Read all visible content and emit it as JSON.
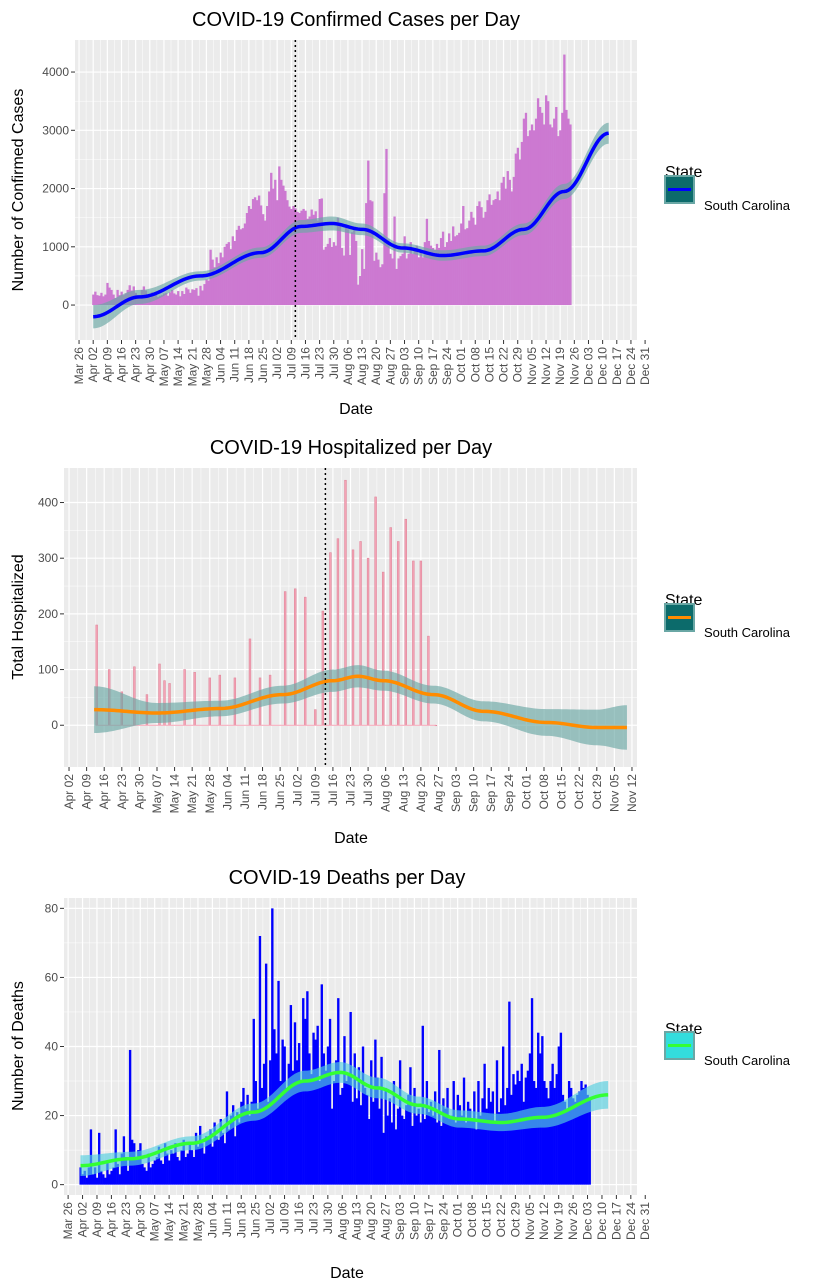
{
  "chart_data": [
    {
      "type": "bar",
      "title": "COVID-19 Confirmed Cases per Day",
      "xlabel": "Date",
      "ylabel": "Number of Confirmed Cases",
      "x_ticks": [
        "Mar 26",
        "Apr 02",
        "Apr 09",
        "Apr 16",
        "Apr 23",
        "Apr 30",
        "May 07",
        "May 14",
        "May 21",
        "May 28",
        "Jun 04",
        "Jun 11",
        "Jun 18",
        "Jun 25",
        "Jul 02",
        "Jul 09",
        "Jul 16",
        "Jul 23",
        "Jul 30",
        "Aug 06",
        "Aug 13",
        "Aug 20",
        "Aug 27",
        "Sep 03",
        "Sep 10",
        "Sep 17",
        "Sep 24",
        "Oct 01",
        "Oct 08",
        "Oct 15",
        "Oct 22",
        "Oct 29",
        "Nov 05",
        "Nov 12",
        "Nov 19",
        "Nov 26",
        "Dec 03",
        "Dec 10",
        "Dec 17",
        "Dec 24",
        "Dec 31"
      ],
      "y_ticks": [
        0,
        1000,
        2000,
        3000,
        4000
      ],
      "ylim": [
        -600,
        4550
      ],
      "xlim_days": [
        -2,
        276
      ],
      "vline_day": 107,
      "colors": {
        "bars": "#cc79d1",
        "trend": "#0000ff",
        "band": "#6aa7a5",
        "legend_fill": "#0c6b6b"
      },
      "legend": {
        "title": "State",
        "label": "South Carolina"
      },
      "series": [
        {
          "name": "South Carolina",
          "start_day": 7,
          "values": [
            180,
            230,
            170,
            160,
            210,
            150,
            180,
            380,
            300,
            260,
            180,
            120,
            260,
            170,
            230,
            170,
            200,
            260,
            340,
            250,
            320,
            210,
            170,
            130,
            260,
            320,
            250,
            180,
            130,
            220,
            150,
            200,
            140,
            160,
            170,
            200,
            210,
            160,
            220,
            260,
            200,
            180,
            240,
            150,
            240,
            190,
            300,
            270,
            210,
            270,
            260,
            290,
            160,
            330,
            250,
            360,
            440,
            420,
            950,
            780,
            650,
            820,
            720,
            900,
            820,
            1000,
            1050,
            1080,
            960,
            1180,
            1100,
            1290,
            1360,
            1300,
            1320,
            1400,
            1580,
            1700,
            1650,
            1820,
            1850,
            1800,
            1880,
            1710,
            1560,
            1450,
            1700,
            1950,
            2270,
            2000,
            2150,
            1800,
            2380,
            2150,
            2050,
            1960,
            1800,
            1690,
            1650,
            1700,
            1660,
            1600,
            1580,
            1620,
            1650,
            1620,
            1480,
            1520,
            1640,
            1550,
            1610,
            1450,
            1820,
            1830,
            950,
            1000,
            1050,
            1150,
            1000,
            1080,
            1020,
            1500,
            1410,
            980,
            850,
            1380,
            1300,
            860,
            1250,
            1280,
            1100,
            350,
            500,
            960,
            620,
            1750,
            2480,
            1800,
            1780,
            760,
            900,
            780,
            650,
            700,
            1920,
            2680,
            1130,
            880,
            800,
            1520,
            620,
            800,
            840,
            880,
            1180,
            800,
            880,
            1080,
            880,
            960,
            1020,
            820,
            920,
            820,
            1080,
            1480,
            1100,
            1020,
            980,
            950,
            1050,
            980,
            1150,
            1260,
            1000,
            1080,
            1230,
            1100,
            1350,
            1180,
            1200,
            1240,
            1400,
            1700,
            1300,
            1320,
            1450,
            1600,
            1500,
            1380,
            1700,
            1780,
            1680,
            1500,
            1600,
            1800,
            1900,
            1720,
            1800,
            1820,
            1950,
            1800,
            2100,
            2200,
            2000,
            2300,
            2150,
            1950,
            2200,
            2600,
            2700,
            2500,
            2800,
            3200,
            3300,
            2900,
            3000,
            3100,
            3000,
            3200,
            3550,
            3400,
            3300,
            3100,
            3600,
            3500,
            3100,
            3050,
            3200,
            3400,
            2900,
            3000,
            3300,
            4300,
            3350,
            3200,
            3100
          ]
        }
      ],
      "trend": {
        "x_days": [
          7,
          30,
          60,
          90,
          110,
          125,
          140,
          160,
          180,
          200,
          220,
          240,
          262
        ],
        "y": [
          -200,
          140,
          500,
          900,
          1350,
          1400,
          1300,
          980,
          850,
          930,
          1300,
          1950,
          2950
        ],
        "band_half_width": [
          200,
          120,
          80,
          90,
          110,
          120,
          100,
          80,
          90,
          90,
          100,
          130,
          180
        ]
      }
    },
    {
      "type": "bar",
      "title": "COVID-19 Hospitalized per Day",
      "xlabel": "Date",
      "ylabel": "Total Hospitalized",
      "x_ticks": [
        "Apr 02",
        "Apr 09",
        "Apr 16",
        "Apr 23",
        "Apr 30",
        "May 07",
        "May 14",
        "May 21",
        "May 28",
        "Jun 04",
        "Jun 11",
        "Jun 18",
        "Jun 25",
        "Jul 02",
        "Jul 09",
        "Jul 16",
        "Jul 23",
        "Jul 30",
        "Aug 06",
        "Aug 13",
        "Aug 20",
        "Aug 27",
        "Sep 03",
        "Sep 10",
        "Sep 17",
        "Sep 24",
        "Oct 01",
        "Oct 08",
        "Oct 15",
        "Oct 22",
        "Oct 29",
        "Nov 05",
        "Nov 12"
      ],
      "y_ticks": [
        0,
        100,
        200,
        300,
        400
      ],
      "ylim": [
        -75,
        462
      ],
      "xlim_days": [
        -2,
        226
      ],
      "vline_day": 102,
      "colors": {
        "bars": "#f4a3b5",
        "trend": "#ff8c00",
        "band": "#6aa7a5",
        "legend_fill": "#0c6b6b"
      },
      "legend": {
        "title": "State",
        "label": "South Carolina"
      },
      "series": [
        {
          "name": "South Carolina",
          "days": [
            11,
            16,
            21,
            26,
            31,
            36,
            38,
            40,
            46,
            50,
            56,
            60,
            66,
            72,
            76,
            80,
            86,
            90,
            94,
            98,
            101,
            104,
            107,
            110,
            113,
            116,
            119,
            122,
            125,
            128,
            131,
            134,
            137,
            140,
            143,
            146
          ],
          "values": [
            180,
            100,
            60,
            105,
            55,
            110,
            80,
            75,
            100,
            95,
            85,
            90,
            85,
            155,
            85,
            90,
            240,
            245,
            230,
            28,
            205,
            310,
            335,
            440,
            315,
            330,
            300,
            410,
            275,
            355,
            330,
            370,
            295,
            295,
            160,
            0
          ]
        }
      ],
      "trend": {
        "x_days": [
          10,
          35,
          60,
          85,
          105,
          115,
          125,
          145,
          165,
          190,
          210,
          222
        ],
        "y": [
          28,
          22,
          30,
          55,
          80,
          88,
          80,
          55,
          25,
          5,
          -4,
          -4
        ],
        "band_half_width": [
          42,
          18,
          14,
          16,
          20,
          20,
          18,
          16,
          18,
          24,
          32,
          40
        ]
      }
    },
    {
      "type": "bar",
      "title": "COVID-19 Deaths per Day",
      "xlabel": "Date",
      "ylabel": "Number of Deaths",
      "x_ticks": [
        "Mar 26",
        "Apr 02",
        "Apr 09",
        "Apr 16",
        "Apr 23",
        "Apr 30",
        "May 07",
        "May 14",
        "May 21",
        "May 28",
        "Jun 04",
        "Jun 11",
        "Jun 18",
        "Jun 25",
        "Jul 02",
        "Jul 09",
        "Jul 16",
        "Jul 23",
        "Jul 30",
        "Aug 06",
        "Aug 13",
        "Aug 20",
        "Aug 27",
        "Sep 03",
        "Sep 10",
        "Sep 17",
        "Sep 24",
        "Oct 01",
        "Oct 08",
        "Oct 15",
        "Oct 22",
        "Oct 29",
        "Nov 05",
        "Nov 12",
        "Nov 19",
        "Nov 26",
        "Dec 03",
        "Dec 10",
        "Dec 17",
        "Dec 24",
        "Dec 31"
      ],
      "y_ticks": [
        0,
        20,
        40,
        60,
        80
      ],
      "ylim": [
        -3,
        83
      ],
      "xlim_days": [
        -2,
        276
      ],
      "colors": {
        "bars": "#0000ff",
        "trend": "#33ff33",
        "band": "#55d0e0",
        "legend_fill": "#33dddd"
      },
      "legend": {
        "title": "State",
        "label": "South Carolina"
      },
      "series": [
        {
          "name": "South Carolina",
          "start_day": 6,
          "values": [
            5,
            3,
            4,
            2,
            5,
            16,
            3,
            5,
            2,
            15,
            4,
            3,
            2,
            7,
            3,
            4,
            5,
            16,
            6,
            3,
            9,
            14,
            8,
            4,
            39,
            13,
            12,
            8,
            10,
            12,
            6,
            5,
            4,
            9,
            5,
            6,
            7,
            8,
            11,
            7,
            6,
            12,
            9,
            7,
            10,
            9,
            12,
            8,
            7,
            10,
            13,
            8,
            9,
            12,
            10,
            8,
            15,
            11,
            17,
            12,
            9,
            14,
            13,
            16,
            11,
            18,
            14,
            13,
            19,
            15,
            12,
            27,
            16,
            20,
            23,
            14,
            21,
            18,
            24,
            28,
            22,
            26,
            20,
            24,
            48,
            30,
            22,
            72,
            28,
            35,
            64,
            24,
            36,
            80,
            45,
            38,
            59,
            30,
            42,
            40,
            28,
            35,
            52,
            33,
            47,
            36,
            41,
            30,
            54,
            48,
            56,
            38,
            32,
            44,
            42,
            46,
            30,
            58,
            38,
            33,
            40,
            48,
            22,
            30,
            36,
            54,
            26,
            28,
            43,
            30,
            32,
            50,
            24,
            38,
            25,
            34,
            23,
            40,
            28,
            26,
            19,
            36,
            24,
            42,
            31,
            22,
            37,
            15,
            28,
            20,
            25,
            18,
            30,
            16,
            22,
            36,
            20,
            19,
            23,
            26,
            34,
            17,
            28,
            20,
            22,
            18,
            46,
            19,
            30,
            21,
            24,
            20,
            27,
            18,
            39,
            17,
            25,
            22,
            28,
            19,
            20,
            30,
            18,
            26,
            23,
            20,
            31,
            18,
            24,
            22,
            19,
            27,
            16,
            30,
            20,
            25,
            35,
            22,
            28,
            24,
            27,
            18,
            36,
            21,
            25,
            40,
            23,
            28,
            53,
            26,
            32,
            29,
            33,
            30,
            35,
            24,
            31,
            33,
            38,
            54,
            30,
            28,
            44,
            38,
            43,
            30,
            28,
            25,
            30,
            35,
            28,
            32,
            40,
            44,
            26,
            24,
            22,
            30,
            28,
            25,
            24,
            26,
            27,
            30,
            28,
            29,
            26,
            25
          ]
        }
      ],
      "trend": {
        "x_days": [
          6,
          30,
          60,
          90,
          115,
          132,
          150,
          170,
          190,
          210,
          230,
          262
        ],
        "y": [
          5.5,
          7.5,
          12,
          21,
          30,
          32.5,
          28,
          23,
          19,
          18,
          19.5,
          26
        ],
        "band_half_width": [
          3,
          2,
          2,
          2.5,
          3,
          3,
          3,
          2.5,
          2.5,
          2.5,
          3,
          4
        ]
      }
    }
  ]
}
